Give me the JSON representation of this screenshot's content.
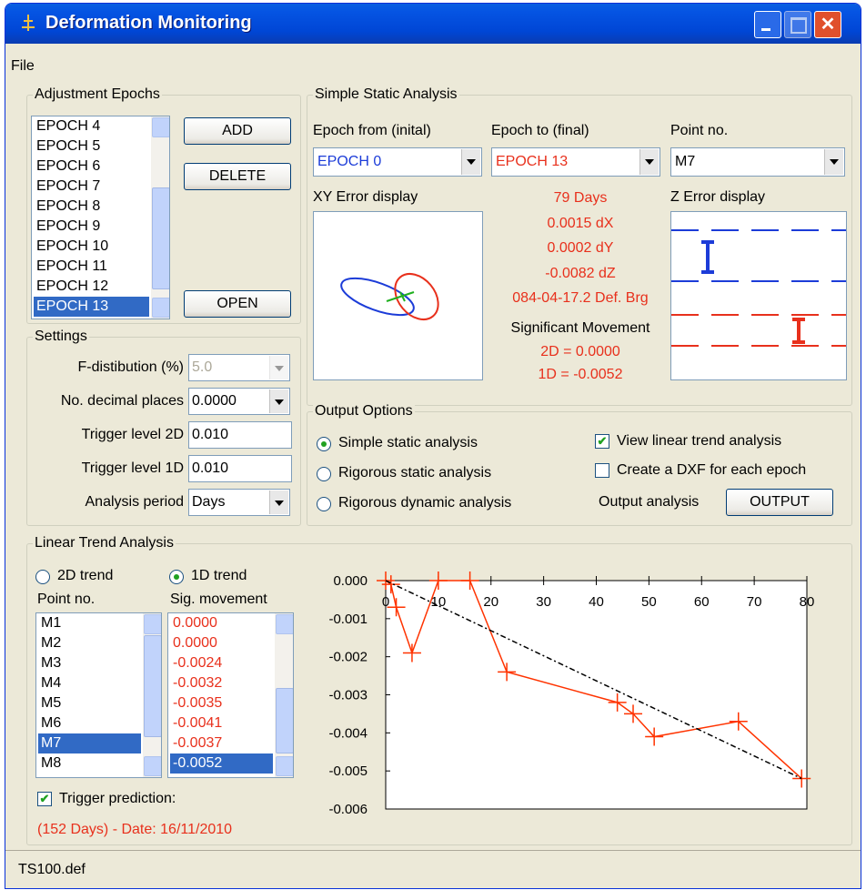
{
  "title_bar": {
    "title": "Deformation Monitoring"
  },
  "menu": [
    "File"
  ],
  "adjustment_epochs": {
    "label": "Adjustment Epochs",
    "items": [
      "EPOCH 4",
      "EPOCH 5",
      "EPOCH 6",
      "EPOCH 7",
      "EPOCH 8",
      "EPOCH 9",
      "EPOCH 10",
      "EPOCH 11",
      "EPOCH 12",
      "EPOCH 13"
    ],
    "selected": 9,
    "buttons": [
      "ADD",
      "DELETE",
      "OPEN"
    ]
  },
  "settings": {
    "label": "Settings",
    "rows": [
      {
        "label": "F-distibution (%)",
        "value": "5.0",
        "kind": "combo",
        "disabled": true
      },
      {
        "label": "No. decimal places",
        "value": "0.0000",
        "kind": "combo"
      },
      {
        "label": "Trigger level 2D",
        "value": "0.010",
        "kind": "text"
      },
      {
        "label": "Trigger level 1D",
        "value": "0.010",
        "kind": "text"
      },
      {
        "label": "Analysis period",
        "value": "Days",
        "kind": "combo"
      }
    ]
  },
  "simple_static": {
    "label": "Simple Static Analysis",
    "epoch_from": {
      "label": "Epoch from (inital)",
      "value": "EPOCH 0",
      "color": "#1c3cd8"
    },
    "epoch_to": {
      "label": "Epoch to (final)",
      "value": "EPOCH 13",
      "color": "#e8301c"
    },
    "point": {
      "label": "Point no.",
      "value": "M7",
      "color": "#000000"
    },
    "xy_label": "XY Error display",
    "z_label": "Z Error display",
    "results": [
      "79 Days",
      "0.0015 dX",
      "0.0002 dY",
      "-0.0082 dZ",
      "084-04-17.2 Def. Brg"
    ],
    "sig_label": "Significant Movement",
    "sig_values": [
      "2D = 0.0000",
      "1D = -0.0052"
    ]
  },
  "output_options": {
    "label": "Output Options",
    "radios": [
      {
        "label": "Simple static analysis",
        "checked": true
      },
      {
        "label": "Rigorous static analysis",
        "checked": false
      },
      {
        "label": "Rigorous dynamic analysis",
        "checked": false
      }
    ],
    "checkboxes": [
      {
        "label": "View linear trend analysis",
        "checked": true
      },
      {
        "label": "Create a DXF for each epoch",
        "checked": false
      }
    ],
    "output_label": "Output analysis",
    "button": "OUTPUT"
  },
  "linear_trend": {
    "label": "Linear Trend Analysis",
    "radios": [
      {
        "label": "2D trend",
        "checked": false
      },
      {
        "label": "1D trend",
        "checked": true
      }
    ],
    "point_label": "Point no.",
    "sig_label": "Sig. movement",
    "points": [
      "M1",
      "M2",
      "M3",
      "M4",
      "M5",
      "M6",
      "M7",
      "M8"
    ],
    "sig_movements": [
      "0.0000",
      "0.0000",
      "-0.0024",
      "-0.0032",
      "-0.0035",
      "-0.0041",
      "-0.0037",
      "-0.0052"
    ],
    "selected_point": 6,
    "selected_sig": 7,
    "trigger": {
      "label": "Trigger prediction:",
      "checked": true
    },
    "prediction": "(152 Days) - Date: 16/11/2010"
  },
  "trend_chart": {
    "type": "line",
    "xlim": [
      0,
      80
    ],
    "ylim": [
      -0.006,
      0
    ],
    "xticks": [
      0,
      10,
      20,
      30,
      40,
      50,
      60,
      70,
      80
    ],
    "yticks": [
      {
        "value": 0,
        "label": "0.000"
      },
      {
        "value": -0.001,
        "label": "-0.001"
      },
      {
        "value": -0.002,
        "label": "-0.002"
      },
      {
        "value": -0.003,
        "label": "-0.003"
      },
      {
        "value": -0.004,
        "label": "-0.004"
      },
      {
        "value": -0.005,
        "label": "-0.005"
      },
      {
        "value": -0.006,
        "label": "-0.006"
      }
    ],
    "series": [
      {
        "color": "#ff3300",
        "markers": true,
        "x": [
          0,
          1,
          2,
          5,
          10,
          16,
          23,
          44,
          47,
          51,
          67,
          79
        ],
        "values": [
          0,
          -0.0001,
          -0.0007,
          -0.0019,
          0,
          0,
          -0.0024,
          -0.0032,
          -0.0035,
          -0.0041,
          -0.0037,
          -0.0052
        ]
      },
      {
        "color": "#000000",
        "dashed": true,
        "x": [
          0,
          79
        ],
        "values": [
          0,
          -0.0052
        ]
      }
    ]
  },
  "status_bar": {
    "text": "TS100.def"
  }
}
